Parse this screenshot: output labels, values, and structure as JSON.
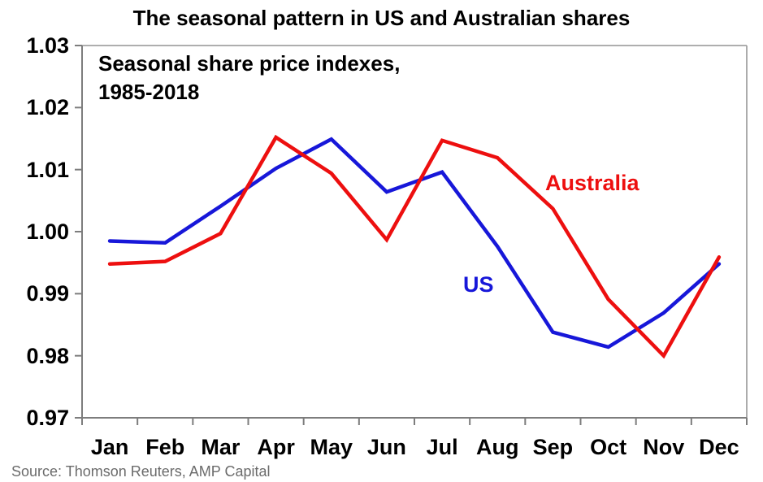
{
  "title": "The seasonal pattern in US and Australian shares",
  "annotation": {
    "line1": "Seasonal share price indexes,",
    "line2": "1985-2018"
  },
  "source": "Source: Thomson Reuters, AMP Capital",
  "colors": {
    "us_blue": "#1717d9",
    "australia_red": "#ed0f0f",
    "frame_gray": "#a3a3a3",
    "axis_gray": "#7d7d7d",
    "source_gray": "#6b6b6b",
    "text_black": "#000000"
  },
  "chart_data": {
    "type": "line",
    "title": "The seasonal pattern in US and Australian shares",
    "subtitle": "Seasonal share price indexes, 1985-2018",
    "categories": [
      "Jan",
      "Feb",
      "Mar",
      "Apr",
      "May",
      "Jun",
      "Jul",
      "Aug",
      "Sep",
      "Oct",
      "Nov",
      "Dec"
    ],
    "series": [
      {
        "name": "US",
        "color_key": "us_blue",
        "values": [
          0.9985,
          0.9982,
          1.0041,
          1.0102,
          1.0149,
          1.0064,
          1.0096,
          0.9976,
          0.9838,
          0.9814,
          0.9869,
          0.9948
        ]
      },
      {
        "name": "Australia",
        "color_key": "australia_red",
        "values": [
          0.9948,
          0.9952,
          0.9997,
          1.0152,
          1.0094,
          0.9987,
          1.0147,
          1.0119,
          1.0037,
          0.9891,
          0.98,
          0.9959
        ]
      }
    ],
    "xlabel": "",
    "ylabel": "",
    "ylim": [
      0.97,
      1.03
    ],
    "ytick_labels": [
      "1.03",
      "1.02",
      "1.01",
      "1.00",
      "0.99",
      "0.98",
      "0.97"
    ],
    "grid": false,
    "legend": "inline text labels near lines"
  },
  "series_labels": {
    "australia": "Australia",
    "us": "US"
  }
}
